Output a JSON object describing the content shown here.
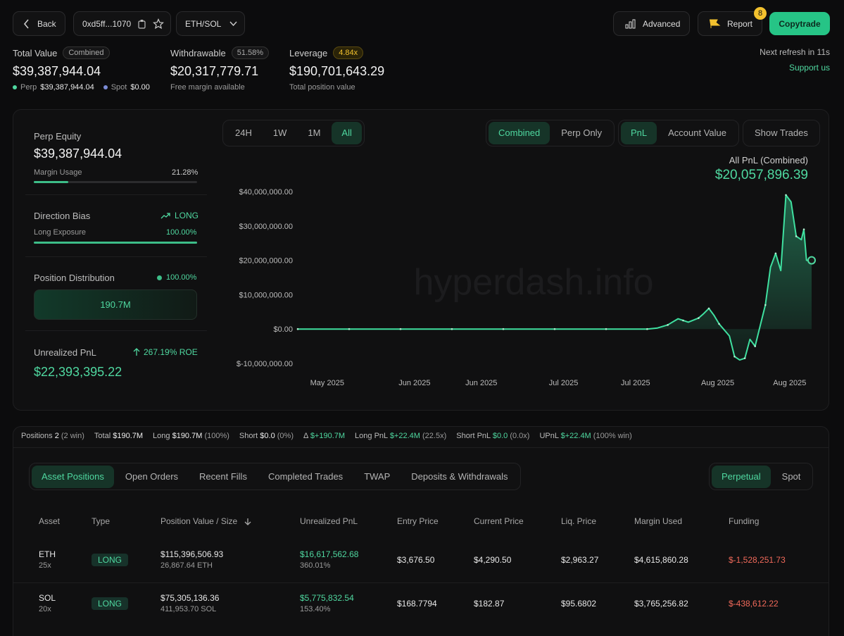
{
  "header": {
    "back_label": "Back",
    "address": "0xd5ff...1070",
    "pair": "ETH/SOL",
    "advanced_label": "Advanced",
    "report_label": "Report",
    "report_count": "8",
    "copytrade_label": "Copytrade"
  },
  "summary": {
    "total_value_label": "Total Value",
    "total_value_badge": "Combined",
    "total_value": "$39,387,944.04",
    "perp_label": "Perp",
    "perp_value": "$39,387,944.04",
    "spot_label": "Spot",
    "spot_value": "$0.00",
    "withdrawable_label": "Withdrawable",
    "withdrawable_badge": "51.58%",
    "withdrawable_value": "$20,317,779.71",
    "withdrawable_sub": "Free margin available",
    "leverage_label": "Leverage",
    "leverage_badge": "4.84x",
    "leverage_value": "$190,701,643.29",
    "leverage_sub": "Total position value",
    "refresh": "Next refresh in 11s",
    "support": "Support us"
  },
  "side": {
    "perp_equity_label": "Perp Equity",
    "perp_equity_value": "$39,387,944.04",
    "margin_usage_label": "Margin Usage",
    "margin_usage_value": "21.28%",
    "margin_usage_fraction": 0.2128,
    "direction_label": "Direction Bias",
    "direction_value": "LONG",
    "long_exposure_label": "Long Exposure",
    "long_exposure_value": "100.00%",
    "long_exposure_fraction": 1.0,
    "position_dist_label": "Position Distribution",
    "position_dist_value": "100.00%",
    "position_dist_amount": "190.7M",
    "upnl_label": "Unrealized PnL",
    "upnl_roe": "267.19% ROE",
    "upnl_value": "$22,393,395.22"
  },
  "chart_controls": {
    "ranges": [
      "24H",
      "1W",
      "1M",
      "All"
    ],
    "active_range": "All",
    "modes": [
      "Combined",
      "Perp Only"
    ],
    "active_mode": "Combined",
    "metrics": [
      "PnL",
      "Account Value"
    ],
    "active_metric": "PnL",
    "show_trades": "Show Trades",
    "caption": "All PnL (Combined)",
    "caption_value": "$20,057,896.39",
    "watermark": "hyperdash.info"
  },
  "chart_data": {
    "type": "area",
    "title": "All PnL (Combined)",
    "ylim": [
      -10000000,
      40000000
    ],
    "yticks": [
      "$40,000,000.00",
      "$30,000,000.00",
      "$20,000,000.00",
      "$10,000,000.00",
      "$0.00",
      "$-10,000,000.00"
    ],
    "ytick_values": [
      40000000,
      30000000,
      20000000,
      10000000,
      0,
      -10000000
    ],
    "xticks": [
      "May 2025",
      "Jun 2025",
      "Jun 2025",
      "Jul 2025",
      "Jul 2025",
      "Aug 2025",
      "Aug 2025"
    ],
    "xtick_positions": [
      0.06,
      0.23,
      0.36,
      0.52,
      0.66,
      0.82,
      0.96
    ],
    "grid": false,
    "x": [
      0,
      0.05,
      0.1,
      0.15,
      0.2,
      0.25,
      0.3,
      0.35,
      0.4,
      0.45,
      0.5,
      0.55,
      0.6,
      0.65,
      0.68,
      0.7,
      0.72,
      0.74,
      0.75,
      0.76,
      0.78,
      0.79,
      0.8,
      0.81,
      0.82,
      0.84,
      0.85,
      0.86,
      0.87,
      0.88,
      0.89,
      0.9,
      0.91,
      0.92,
      0.93,
      0.94,
      0.95,
      0.96,
      0.97,
      0.98,
      0.985,
      0.99,
      1.0
    ],
    "values": [
      0,
      0,
      0,
      0,
      0,
      0,
      0,
      0,
      0,
      0,
      0,
      0,
      0,
      0,
      0,
      300000,
      1200000,
      3000000,
      2500000,
      2000000,
      3200000,
      4500000,
      6000000,
      4000000,
      1500000,
      -2000000,
      -8000000,
      -9000000,
      -8500000,
      -3000000,
      -5000000,
      1000000,
      7000000,
      18000000,
      22000000,
      17000000,
      39000000,
      37000000,
      27000000,
      26000000,
      29000000,
      20000000,
      20000000
    ]
  },
  "stats_bar": {
    "positions_label": "Positions",
    "positions_value": "2",
    "positions_sub": "(2 win)",
    "total_label": "Total",
    "total_value": "$190.7M",
    "long_label": "Long",
    "long_value": "$190.7M",
    "long_sub": "(100%)",
    "short_label": "Short",
    "short_value": "$0.0",
    "short_sub": "(0%)",
    "delta_label": "Δ",
    "delta_value": "$+190.7M",
    "longpnl_label": "Long PnL",
    "longpnl_value": "$+22.4M",
    "longpnl_sub": "(22.5x)",
    "shortpnl_label": "Short PnL",
    "shortpnl_value": "$0.0",
    "shortpnl_sub": "(0.0x)",
    "upnl_label": "UPnL",
    "upnl_value": "$+22.4M",
    "upnl_sub": "(100% win)"
  },
  "tabs": {
    "items": [
      "Asset Positions",
      "Open Orders",
      "Recent Fills",
      "Completed Trades",
      "TWAP",
      "Deposits & Withdrawals"
    ],
    "active": "Asset Positions",
    "market": [
      "Perpetual",
      "Spot"
    ],
    "active_market": "Perpetual"
  },
  "table": {
    "headers": [
      "Asset",
      "Type",
      "Position Value / Size",
      "Unrealized PnL",
      "Entry Price",
      "Current Price",
      "Liq. Price",
      "Margin Used",
      "Funding"
    ],
    "rows": [
      {
        "asset": "ETH",
        "lev": "25x",
        "type": "LONG",
        "value": "$115,396,506.93",
        "size": "26,867.64 ETH",
        "upnl": "$16,617,562.68",
        "upnl_pct": "360.01%",
        "entry": "$3,676.50",
        "current": "$4,290.50",
        "liq": "$2,963.27",
        "margin": "$4,615,860.28",
        "funding": "$-1,528,251.73"
      },
      {
        "asset": "SOL",
        "lev": "20x",
        "type": "LONG",
        "value": "$75,305,136.36",
        "size": "411,953.70 SOL",
        "upnl": "$5,775,832.54",
        "upnl_pct": "153.40%",
        "entry": "$168.7794",
        "current": "$182.87",
        "liq": "$95.6802",
        "margin": "$3,765,256.82",
        "funding": "$-438,612.22"
      }
    ]
  },
  "colors": {
    "accent": "#4fd8a0",
    "negative": "#f0695a",
    "warning": "#f2c12e",
    "copytrade": "#26c486"
  }
}
